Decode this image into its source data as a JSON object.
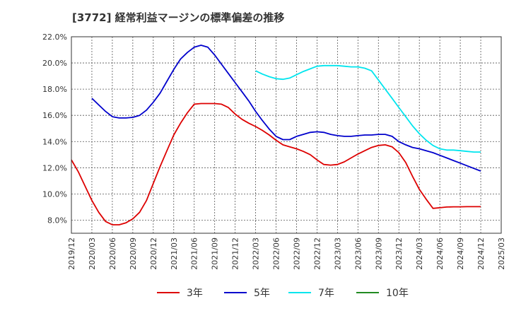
{
  "chart_data": {
    "type": "line",
    "title": "[3772]  経常利益マージンの標準偏差の推移",
    "ylim": [
      7.0,
      22.0
    ],
    "yticks": [
      8.0,
      10.0,
      12.0,
      14.0,
      16.0,
      18.0,
      20.0,
      22.0
    ],
    "ytick_labels": [
      "8.0%",
      "10.0%",
      "12.0%",
      "14.0%",
      "16.0%",
      "18.0%",
      "20.0%",
      "22.0%"
    ],
    "xlim": [
      "2019-12",
      "2025-03"
    ],
    "xtick_labels": [
      "2019/12",
      "2020/03",
      "2020/06",
      "2020/09",
      "2020/12",
      "2021/03",
      "2021/06",
      "2021/09",
      "2021/12",
      "2022/03",
      "2022/06",
      "2022/09",
      "2022/12",
      "2023/03",
      "2023/06",
      "2023/09",
      "2023/12",
      "2024/03",
      "2024/06",
      "2024/09",
      "2024/12",
      "2025/03"
    ],
    "grid": true,
    "legend_position": "bottom",
    "series": [
      {
        "name": "3年",
        "color": "#dd0000",
        "x": [
          "2019-12",
          "2020-01",
          "2020-02",
          "2020-03",
          "2020-04",
          "2020-05",
          "2020-06",
          "2020-07",
          "2020-08",
          "2020-09",
          "2020-10",
          "2020-11",
          "2020-12",
          "2021-01",
          "2021-02",
          "2021-03",
          "2021-04",
          "2021-05",
          "2021-06",
          "2021-07",
          "2021-08",
          "2021-09",
          "2021-10",
          "2021-11",
          "2021-12",
          "2022-01",
          "2022-02",
          "2022-03",
          "2022-04",
          "2022-05",
          "2022-06",
          "2022-07",
          "2022-08",
          "2022-09",
          "2022-10",
          "2022-11",
          "2022-12",
          "2023-01",
          "2023-02",
          "2023-03",
          "2023-04",
          "2023-05",
          "2023-06",
          "2023-07",
          "2023-08",
          "2023-09",
          "2023-10",
          "2023-11",
          "2023-12",
          "2024-01",
          "2024-02",
          "2024-03",
          "2024-04",
          "2024-05",
          "2024-06",
          "2024-07",
          "2024-08",
          "2024-09",
          "2024-10",
          "2024-11",
          "2024-12"
        ],
        "values": [
          12.6,
          11.7,
          10.6,
          9.5,
          8.6,
          7.9,
          7.65,
          7.65,
          7.8,
          8.1,
          8.6,
          9.5,
          10.8,
          12.1,
          13.3,
          14.5,
          15.4,
          16.2,
          16.85,
          16.9,
          16.9,
          16.9,
          16.85,
          16.6,
          16.1,
          15.7,
          15.4,
          15.15,
          14.85,
          14.5,
          14.1,
          13.75,
          13.6,
          13.45,
          13.25,
          13.0,
          12.6,
          12.25,
          12.2,
          12.25,
          12.45,
          12.75,
          13.05,
          13.3,
          13.55,
          13.7,
          13.75,
          13.6,
          13.15,
          12.4,
          11.35,
          10.35,
          9.6,
          8.9,
          8.95,
          9.0,
          9.02,
          9.02,
          9.03,
          9.03,
          9.03
        ]
      },
      {
        "name": "5年",
        "color": "#0000cc",
        "x": [
          "2020-03",
          "2020-04",
          "2020-05",
          "2020-06",
          "2020-07",
          "2020-08",
          "2020-09",
          "2020-10",
          "2020-11",
          "2020-12",
          "2021-01",
          "2021-02",
          "2021-03",
          "2021-04",
          "2021-05",
          "2021-06",
          "2021-07",
          "2021-08",
          "2021-09",
          "2021-10",
          "2021-11",
          "2021-12",
          "2022-01",
          "2022-02",
          "2022-03",
          "2022-04",
          "2022-05",
          "2022-06",
          "2022-07",
          "2022-08",
          "2022-09",
          "2022-10",
          "2022-11",
          "2022-12",
          "2023-01",
          "2023-02",
          "2023-03",
          "2023-04",
          "2023-05",
          "2023-06",
          "2023-07",
          "2023-08",
          "2023-09",
          "2023-10",
          "2023-11",
          "2023-12",
          "2024-01",
          "2024-02",
          "2024-03",
          "2024-04",
          "2024-05",
          "2024-06",
          "2024-07",
          "2024-08",
          "2024-09",
          "2024-10",
          "2024-11",
          "2024-12"
        ],
        "values": [
          17.3,
          16.8,
          16.3,
          15.9,
          15.8,
          15.8,
          15.85,
          16.0,
          16.4,
          17.0,
          17.7,
          18.6,
          19.5,
          20.3,
          20.8,
          21.2,
          21.35,
          21.2,
          20.6,
          19.9,
          19.2,
          18.5,
          17.8,
          17.1,
          16.3,
          15.6,
          14.95,
          14.4,
          14.15,
          14.15,
          14.4,
          14.55,
          14.7,
          14.75,
          14.7,
          14.55,
          14.45,
          14.4,
          14.4,
          14.45,
          14.5,
          14.5,
          14.55,
          14.55,
          14.4,
          14.0,
          13.75,
          13.55,
          13.45,
          13.3,
          13.15,
          12.95,
          12.75,
          12.55,
          12.35,
          12.15,
          11.95,
          11.75
        ]
      },
      {
        "name": "7年",
        "color": "#00e5ee",
        "x": [
          "2022-03",
          "2022-04",
          "2022-05",
          "2022-06",
          "2022-07",
          "2022-08",
          "2022-09",
          "2022-10",
          "2022-11",
          "2022-12",
          "2023-01",
          "2023-02",
          "2023-03",
          "2023-04",
          "2023-05",
          "2023-06",
          "2023-07",
          "2023-08",
          "2023-09",
          "2023-10",
          "2023-11",
          "2023-12",
          "2024-01",
          "2024-02",
          "2024-03",
          "2024-04",
          "2024-05",
          "2024-06",
          "2024-07",
          "2024-08",
          "2024-09",
          "2024-10",
          "2024-11",
          "2024-12"
        ],
        "values": [
          19.4,
          19.15,
          18.95,
          18.8,
          18.75,
          18.85,
          19.1,
          19.35,
          19.55,
          19.75,
          19.8,
          19.8,
          19.8,
          19.75,
          19.7,
          19.7,
          19.6,
          19.4,
          18.7,
          18.0,
          17.3,
          16.6,
          15.9,
          15.2,
          14.6,
          14.1,
          13.7,
          13.45,
          13.35,
          13.35,
          13.3,
          13.25,
          13.2,
          13.2
        ]
      },
      {
        "name": "10年",
        "color": "#228b22",
        "x": [],
        "values": []
      }
    ]
  }
}
